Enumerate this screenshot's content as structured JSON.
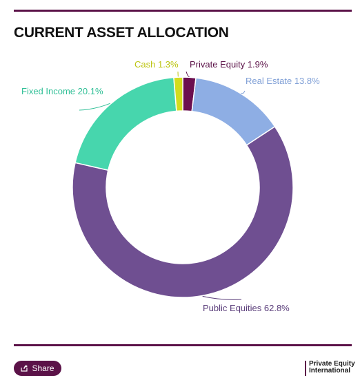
{
  "title": "CURRENT ASSET ALLOCATION",
  "chart_data": {
    "type": "pie",
    "variant": "donut",
    "title": "CURRENT ASSET ALLOCATION",
    "unit": "%",
    "slices": [
      {
        "label": "Private Equity",
        "value": 1.9,
        "display": "Private Equity 1.9%",
        "color": "#6b0f4f",
        "label_color": "#5b1248"
      },
      {
        "label": "Real Estate",
        "value": 13.8,
        "display": "Real Estate 13.8%",
        "color": "#8eaee4",
        "label_color": "#7f9fd6"
      },
      {
        "label": "Public Equities",
        "value": 62.8,
        "display": "Public Equities 62.8%",
        "color": "#6f4f91",
        "label_color": "#5a3d7a"
      },
      {
        "label": "Fixed Income",
        "value": 20.1,
        "display": "Fixed Income 20.1%",
        "color": "#47d6ad",
        "label_color": "#2fbf96"
      },
      {
        "label": "Cash",
        "value": 1.3,
        "display": "Cash 1.3%",
        "color": "#d3dc1e",
        "label_color": "#bcc40f"
      }
    ]
  },
  "footer": {
    "share_label": "Share",
    "logo_line1": "Private Equity",
    "logo_line2": "International"
  },
  "colors": {
    "brand": "#5b1248"
  }
}
